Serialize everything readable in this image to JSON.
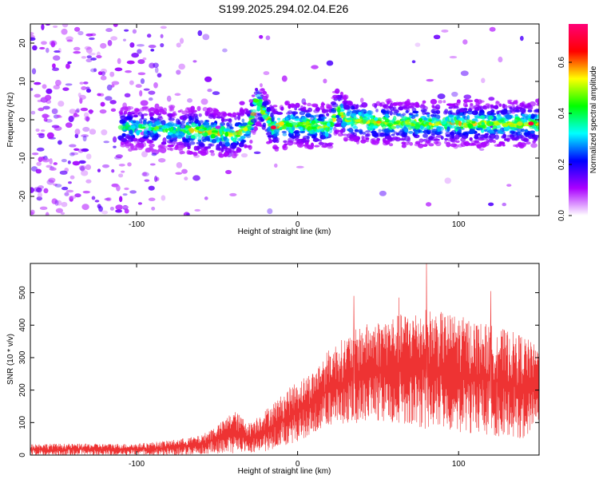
{
  "title": "S199.2025.294.02.04.E26",
  "chart_data": [
    {
      "type": "heatmap",
      "name": "spectrogram",
      "xlabel": "Height of straight line (km)",
      "ylabel": "Frequency (Hz)",
      "xlim": [
        -166,
        150
      ],
      "ylim": [
        -25,
        25
      ],
      "xticks": [
        -100,
        0,
        100
      ],
      "yticks": [
        -20,
        -10,
        0,
        10,
        20
      ],
      "colorbar": {
        "label": "Normalized spectral amplitude",
        "range": [
          0,
          0.75
        ],
        "ticks": [
          0.0,
          0.2,
          0.4,
          0.6
        ]
      },
      "signal_ridge": [
        {
          "x": -166,
          "y": -2
        },
        {
          "x": -100,
          "y": -2
        },
        {
          "x": -60,
          "y": -3
        },
        {
          "x": -40,
          "y": -4
        },
        {
          "x": -30,
          "y": -2
        },
        {
          "x": -25,
          "y": 5
        },
        {
          "x": -20,
          "y": 1
        },
        {
          "x": -15,
          "y": -2
        },
        {
          "x": 0,
          "y": -1
        },
        {
          "x": 20,
          "y": -2
        },
        {
          "x": 25,
          "y": 3
        },
        {
          "x": 30,
          "y": 0
        },
        {
          "x": 60,
          "y": -1
        },
        {
          "x": 100,
          "y": -1
        },
        {
          "x": 150,
          "y": -1
        }
      ]
    },
    {
      "type": "line",
      "name": "snr",
      "xlabel": "Height of straight line (km)",
      "ylabel": "SNR (10 * v/v)",
      "xlim": [
        -166,
        150
      ],
      "ylim": [
        0,
        590
      ],
      "xticks": [
        -100,
        0,
        100
      ],
      "yticks": [
        0,
        100,
        200,
        300,
        400,
        500
      ],
      "color": "#ee3333",
      "envelope": [
        {
          "x": -166,
          "low": 0,
          "high": 35
        },
        {
          "x": -100,
          "low": 0,
          "high": 35
        },
        {
          "x": -80,
          "low": 0,
          "high": 45
        },
        {
          "x": -60,
          "low": 2,
          "high": 60
        },
        {
          "x": -45,
          "low": 5,
          "high": 110
        },
        {
          "x": -40,
          "low": 5,
          "high": 140
        },
        {
          "x": -30,
          "low": 5,
          "high": 100
        },
        {
          "x": -20,
          "low": 10,
          "high": 140
        },
        {
          "x": 0,
          "low": 40,
          "high": 230
        },
        {
          "x": 10,
          "low": 60,
          "high": 260
        },
        {
          "x": 20,
          "low": 90,
          "high": 330
        },
        {
          "x": 40,
          "low": 100,
          "high": 400
        },
        {
          "x": 60,
          "low": 100,
          "high": 430
        },
        {
          "x": 80,
          "low": 80,
          "high": 450
        },
        {
          "x": 100,
          "low": 70,
          "high": 430
        },
        {
          "x": 120,
          "low": 60,
          "high": 400
        },
        {
          "x": 140,
          "low": 50,
          "high": 370
        },
        {
          "x": 150,
          "low": 100,
          "high": 330
        }
      ],
      "peaks": [
        {
          "x": 80,
          "y": 590
        },
        {
          "x": 120,
          "y": 505
        },
        {
          "x": 35,
          "y": 490
        },
        {
          "x": 63,
          "y": 485
        }
      ]
    }
  ],
  "colorbar_stops": [
    "#ffffff",
    "#aa00ff",
    "#0000ff",
    "#00ffff",
    "#00ff00",
    "#ffff00",
    "#ff0000",
    "#ff0077"
  ]
}
